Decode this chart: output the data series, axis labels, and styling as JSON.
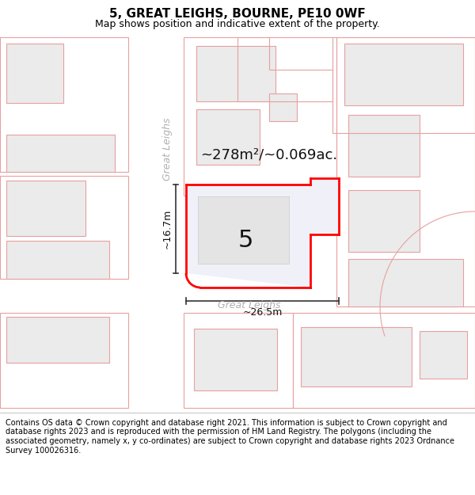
{
  "title": "5, GREAT LEIGHS, BOURNE, PE10 0WF",
  "subtitle": "Map shows position and indicative extent of the property.",
  "footer": "Contains OS data © Crown copyright and database right 2021. This information is subject to Crown copyright and database rights 2023 and is reproduced with the permission of HM Land Registry. The polygons (including the associated geometry, namely x, y co-ordinates) are subject to Crown copyright and database rights 2023 Ordnance Survey 100026316.",
  "area_label": "~278m²/~0.069ac.",
  "number_label": "5",
  "dim_width": "~26.5m",
  "dim_height": "~16.7m",
  "street_name_road": "Great Leighs",
  "street_name_bottom": "Great Leighs",
  "bg_color": "#ffffff",
  "map_bg": "#ffffff",
  "building_fill": "#ebebeb",
  "building_stroke": "#e8a0a0",
  "highlight_fill": "#ffffff",
  "highlight_stroke": "#ff0000",
  "title_fontsize": 11,
  "subtitle_fontsize": 9,
  "footer_fontsize": 7.0,
  "label_fontsize": 13,
  "number_fontsize": 22,
  "street_fontsize": 9,
  "dim_fontsize": 9
}
